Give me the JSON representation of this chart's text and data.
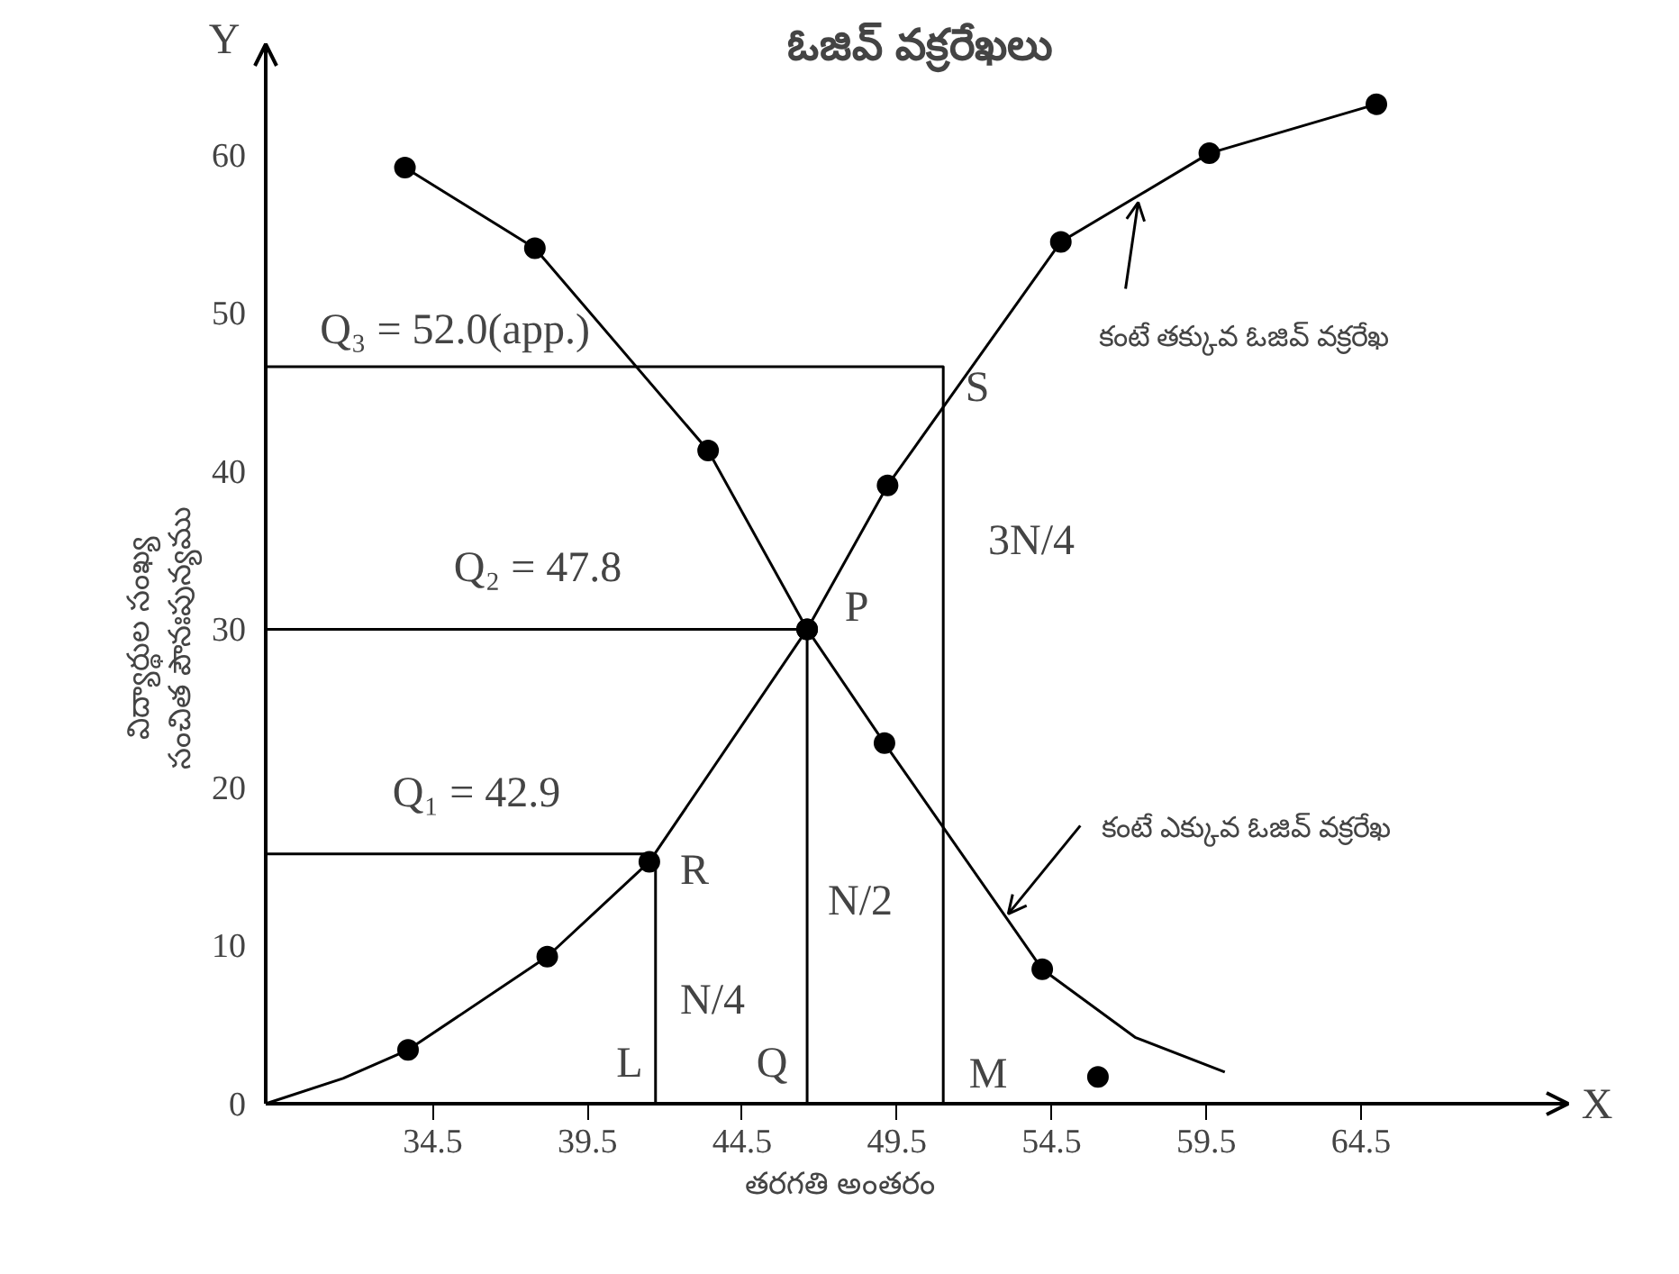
{
  "chart_data": {
    "type": "line",
    "title": "ఓజివ్ వక్రరేఖలు",
    "xlabel": "తరగతి అంతరం",
    "ylabel": "విద్యార్థుల సంఖ్య\nసంచిత పౌనఃపున్యము",
    "xlim": [
      29.1,
      71.2
    ],
    "ylim": [
      0,
      67
    ],
    "xticks": [
      34.5,
      39.5,
      44.5,
      49.5,
      54.5,
      59.5,
      64.5
    ],
    "yticks": [
      0,
      10,
      20,
      30,
      40,
      50,
      60
    ],
    "grid": false,
    "series": [
      {
        "marker": "none",
        "color": "#000000",
        "x": [
          29.1,
          31.6,
          33.7
        ],
        "values": [
          0,
          1.6,
          3.4
        ]
      },
      {
        "marker": "circle",
        "color": "#000000",
        "x": [
          33.7,
          38.2,
          41.5,
          46.6,
          49.2,
          54.8,
          59.6,
          65.0
        ],
        "values": [
          3.4,
          9.3,
          15.3,
          30.0,
          39.1,
          54.5,
          60.1,
          63.2
        ]
      },
      {
        "marker": "circle",
        "color": "#000000",
        "x": [
          33.6,
          37.8,
          43.4,
          46.6,
          49.1,
          54.2
        ],
        "values": [
          59.2,
          54.1,
          41.3,
          30.0,
          22.8,
          8.5
        ]
      },
      {
        "marker": "none",
        "color": "#000000",
        "x": [
          54.2,
          57.2,
          60.1
        ],
        "values": [
          8.5,
          4.2,
          2.0
        ]
      },
      {
        "type": "scatter",
        "marker": "circle",
        "color": "#000000",
        "x": [
          56.0
        ],
        "values": [
          1.7
        ]
      },
      {
        "marker": "none",
        "color": "#000000",
        "x": [
          29.1,
          51.0,
          51.0
        ],
        "values": [
          46.6,
          46.6,
          0
        ]
      },
      {
        "marker": "none",
        "color": "#000000",
        "x": [
          29.1,
          46.6,
          46.6
        ],
        "values": [
          30.0,
          30.0,
          0
        ]
      },
      {
        "marker": "none",
        "color": "#000000",
        "x": [
          29.1,
          41.7,
          41.7
        ],
        "values": [
          15.8,
          15.8,
          0
        ]
      }
    ],
    "annotations": [
      "Q₃ = 52.0(app.)",
      "Q₂ = 47.8",
      "Q₁ = 42.9",
      "S",
      "P",
      "R",
      "L",
      "Q",
      "M",
      "N/4",
      "N/2",
      "3N/4",
      "Y",
      "X",
      {
        "text": "కంటే తక్కువ ఓజివ్ వక్రరేఖ",
        "x": 57.3,
        "y": 57.0
      },
      {
        "text": "కంటే ఎక్కువ ఓజివ్ వక్రరేఖ",
        "x": 53.1,
        "y": 12.0
      }
    ]
  }
}
